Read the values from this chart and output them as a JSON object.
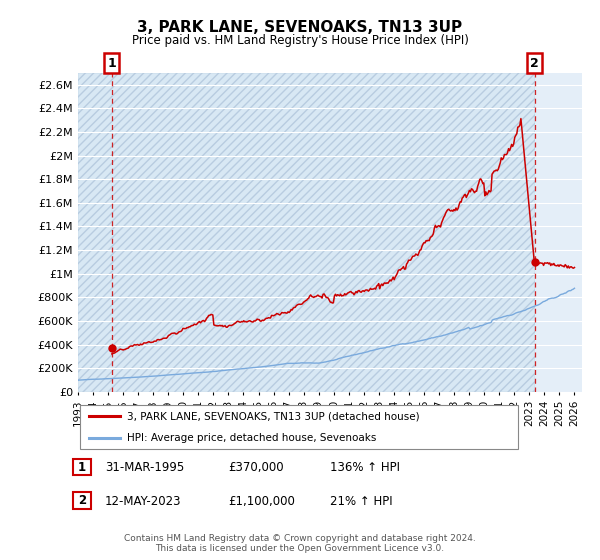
{
  "title": "3, PARK LANE, SEVENOAKS, TN13 3UP",
  "subtitle": "Price paid vs. HM Land Registry's House Price Index (HPI)",
  "ylabel_ticks": [
    "£0",
    "£200K",
    "£400K",
    "£600K",
    "£800K",
    "£1M",
    "£1.2M",
    "£1.4M",
    "£1.6M",
    "£1.8M",
    "£2M",
    "£2.2M",
    "£2.4M",
    "£2.6M"
  ],
  "ylim": [
    0,
    2700000
  ],
  "ytick_vals": [
    0,
    200000,
    400000,
    600000,
    800000,
    1000000,
    1200000,
    1400000,
    1600000,
    1800000,
    2000000,
    2200000,
    2400000,
    2600000
  ],
  "xlim_start": 1993.0,
  "xlim_end": 2026.5,
  "sale1_x": 1995.25,
  "sale1_y": 370000,
  "sale2_x": 2023.36,
  "sale2_y": 1100000,
  "sale1_label": "1",
  "sale2_label": "2",
  "marker_color": "#cc0000",
  "dashed_line_color": "#cc0000",
  "hpi_color": "#7aaadd",
  "property_line_color": "#cc0000",
  "bg_hatch_color": "#dce8f5",
  "bg_plain_color": "#e8f0f8",
  "grid_color": "#ffffff",
  "legend_label1": "3, PARK LANE, SEVENOAKS, TN13 3UP (detached house)",
  "legend_label2": "HPI: Average price, detached house, Sevenoaks",
  "table_row1": [
    "1",
    "31-MAR-1995",
    "£370,000",
    "136% ↑ HPI"
  ],
  "table_row2": [
    "2",
    "12-MAY-2023",
    "£1,100,000",
    "21% ↑ HPI"
  ],
  "footer": "Contains HM Land Registry data © Crown copyright and database right 2024.\nThis data is licensed under the Open Government Licence v3.0.",
  "xtick_years": [
    1993,
    1994,
    1995,
    1996,
    1997,
    1998,
    1999,
    2000,
    2001,
    2002,
    2003,
    2004,
    2005,
    2006,
    2007,
    2008,
    2009,
    2010,
    2011,
    2012,
    2013,
    2014,
    2015,
    2016,
    2017,
    2018,
    2019,
    2020,
    2021,
    2022,
    2023,
    2024,
    2025,
    2026
  ]
}
